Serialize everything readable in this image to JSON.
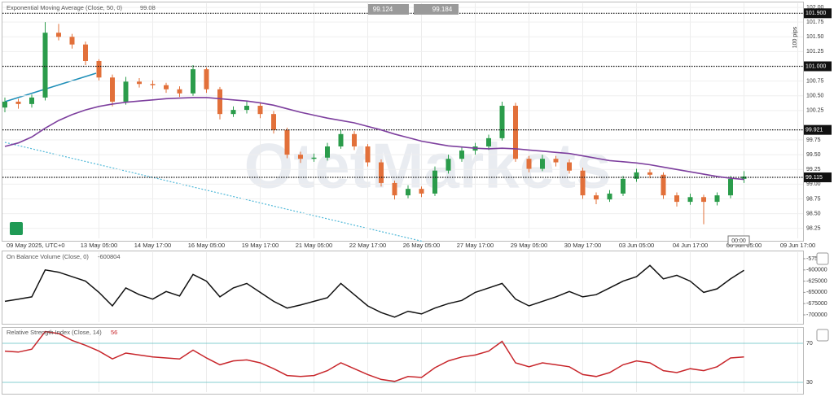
{
  "quotes": [
    "99.124",
    "99.184"
  ],
  "watermark": "OtetMarkets",
  "pips_label": "100 pips",
  "timer": "00:00",
  "chart_data": [
    {
      "type": "candlestick",
      "title": "Exponential Moving Average (Close, 50, 0)",
      "last_value": 99.08,
      "categories": [
        "09 May 2025, UTC+0",
        null,
        null,
        null,
        null,
        null,
        null,
        "13 May 05:00",
        null,
        null,
        null,
        "14 May 17:00",
        null,
        null,
        null,
        "16 May 05:00",
        null,
        null,
        null,
        "19 May 17:00",
        null,
        null,
        null,
        "21 May 05:00",
        null,
        null,
        null,
        "22 May 17:00",
        null,
        null,
        null,
        "26 May 05:00",
        null,
        null,
        null,
        "27 May 17:00",
        null,
        null,
        null,
        "29 May 05:00",
        null,
        null,
        null,
        "30 May 17:00",
        null,
        null,
        null,
        "03 Jun 05:00",
        null,
        null,
        null,
        "04 Jun 17:00",
        null,
        null,
        null,
        "06 Jun 05:00",
        null,
        null,
        null,
        "09 Jun 17:00"
      ],
      "open": [
        100.3,
        100.4,
        100.36,
        100.47,
        101.57,
        101.5,
        101.37,
        101.09,
        100.81,
        100.4,
        100.74,
        100.7,
        100.68,
        100.61,
        100.54,
        100.95,
        100.61,
        100.19,
        100.26,
        100.33,
        100.19,
        99.92,
        99.5,
        99.43,
        99.45,
        99.64,
        99.85,
        99.64,
        99.37,
        99.02,
        98.81,
        98.92,
        98.84,
        99.23,
        99.43,
        99.57,
        99.64,
        99.78,
        100.33,
        99.43,
        99.26,
        99.43,
        99.37,
        99.23,
        98.81,
        98.74,
        98.84,
        99.09,
        99.2,
        99.16,
        98.81,
        98.7,
        98.78,
        98.7,
        98.81,
        99.09,
        null,
        null,
        null,
        null
      ],
      "high": [
        100.47,
        100.45,
        100.52,
        101.75,
        101.72,
        101.55,
        101.42,
        101.12,
        100.86,
        100.82,
        100.8,
        100.76,
        100.72,
        100.66,
        101.02,
        100.98,
        100.65,
        100.32,
        100.4,
        100.38,
        100.24,
        99.96,
        99.55,
        99.52,
        99.7,
        99.92,
        99.9,
        99.68,
        99.42,
        99.06,
        98.98,
        98.96,
        99.3,
        99.5,
        99.64,
        99.7,
        99.84,
        100.4,
        100.38,
        99.48,
        99.5,
        99.48,
        99.42,
        99.28,
        98.86,
        98.9,
        99.14,
        99.26,
        99.25,
        99.2,
        98.86,
        98.84,
        98.82,
        98.86,
        99.14,
        99.22,
        null,
        null,
        null,
        null
      ],
      "low": [
        100.22,
        100.28,
        100.3,
        100.42,
        101.44,
        101.3,
        101.02,
        100.76,
        100.32,
        100.35,
        100.64,
        100.62,
        100.55,
        100.48,
        100.5,
        100.55,
        100.1,
        100.14,
        100.2,
        100.12,
        99.86,
        99.44,
        99.36,
        99.38,
        99.4,
        99.6,
        99.58,
        99.3,
        98.96,
        98.74,
        98.76,
        98.78,
        98.8,
        99.18,
        99.38,
        99.5,
        99.58,
        99.74,
        99.38,
        99.2,
        99.22,
        99.3,
        99.18,
        98.75,
        98.66,
        98.7,
        98.8,
        99.04,
        99.1,
        98.75,
        98.62,
        98.65,
        98.32,
        98.64,
        98.76,
        99.02,
        null,
        null,
        null,
        null
      ],
      "close": [
        100.4,
        100.36,
        100.47,
        101.57,
        101.5,
        101.37,
        101.09,
        100.81,
        100.4,
        100.74,
        100.7,
        100.68,
        100.61,
        100.54,
        100.95,
        100.61,
        100.19,
        100.26,
        100.33,
        100.19,
        99.92,
        99.5,
        99.43,
        99.45,
        99.64,
        99.85,
        99.64,
        99.37,
        99.02,
        98.81,
        98.92,
        98.84,
        99.23,
        99.43,
        99.57,
        99.64,
        99.78,
        100.33,
        99.43,
        99.26,
        99.43,
        99.37,
        99.23,
        98.81,
        98.74,
        98.84,
        99.09,
        99.2,
        99.16,
        98.81,
        98.7,
        98.78,
        98.7,
        98.81,
        99.09,
        99.13,
        null,
        null,
        null,
        null
      ],
      "up_color": "#2b9c4b",
      "down_color": "#e2703a",
      "series": [
        {
          "name": "Exponential Moving Average (Close, 50, 0)",
          "color": "#7d3f9e",
          "values": [
            99.64,
            99.7,
            99.8,
            99.95,
            100.08,
            100.18,
            100.26,
            100.32,
            100.36,
            100.39,
            100.41,
            100.43,
            100.45,
            100.46,
            100.47,
            100.47,
            100.45,
            100.43,
            100.41,
            100.38,
            100.34,
            100.28,
            100.22,
            100.17,
            100.12,
            100.08,
            100.04,
            99.98,
            99.92,
            99.85,
            99.79,
            99.73,
            99.69,
            99.65,
            99.63,
            99.61,
            99.6,
            99.61,
            99.6,
            99.58,
            99.56,
            99.54,
            99.52,
            99.48,
            99.44,
            99.4,
            99.38,
            99.36,
            99.33,
            99.29,
            99.25,
            99.21,
            99.17,
            99.13,
            99.1,
            99.08,
            null,
            null,
            null,
            null
          ]
        }
      ],
      "levels": [
        {
          "value": 101.9,
          "label": "101.900"
        },
        {
          "value": 101.0,
          "label": "101.000"
        },
        {
          "value": 99.921,
          "label": "99.921"
        },
        {
          "value": 99.115,
          "label": "99.115"
        }
      ],
      "ylim": [
        98.08,
        102.07
      ],
      "yticks": [
        98.25,
        {
          "value": 98.5,
          "label": "98.50"
        },
        98.75,
        {
          "value": 99,
          "label": "99.00"
        },
        99.25,
        {
          "value": 99.5,
          "label": "99.50"
        },
        99.75,
        100.25,
        {
          "value": 100.5,
          "label": "100.50"
        },
        100.75,
        101.25,
        {
          "value": 101.5,
          "label": "101.50"
        },
        101.75,
        {
          "value": 102,
          "label": "102.00"
        }
      ],
      "grid": true
    },
    {
      "type": "line",
      "title": "On Balance Volume (Close, 0)",
      "last_value": -600804,
      "series": [
        {
          "name": "On Balance Volume (Close, 0)",
          "color": "#111111",
          "values": [
            -670000,
            -665000,
            -660000,
            -600000,
            -605000,
            -615000,
            -625000,
            -650000,
            -680000,
            -640000,
            -655000,
            -665000,
            -648000,
            -658000,
            -610000,
            -625000,
            -660000,
            -640000,
            -630000,
            -650000,
            -670000,
            -685000,
            -678000,
            -670000,
            -662000,
            -630000,
            -655000,
            -680000,
            -695000,
            -705000,
            -692000,
            -698000,
            -685000,
            -675000,
            -668000,
            -650000,
            -640000,
            -630000,
            -665000,
            -680000,
            -670000,
            -660000,
            -648000,
            -660000,
            -655000,
            -640000,
            -625000,
            -615000,
            -590000,
            -620000,
            -612000,
            -625000,
            -650000,
            -642000,
            -620000,
            -600804,
            null,
            null,
            null,
            null
          ]
        }
      ],
      "ylim": [
        -716300,
        -560500
      ],
      "yticks": [
        -575000,
        -600000,
        -625000,
        -650000,
        -675000,
        -700000
      ]
    },
    {
      "type": "line",
      "title": "Relative Strength Index (Close, 14)",
      "last_value": 56,
      "series": [
        {
          "name": "Relative Strength Index (Close, 14)",
          "color": "#c8262b",
          "values": [
            62,
            61,
            64,
            82,
            80,
            73,
            68,
            62,
            54,
            60,
            58,
            56,
            55,
            54,
            63,
            55,
            48,
            52,
            53,
            50,
            44,
            37,
            36,
            37,
            42,
            50,
            44,
            38,
            33,
            31,
            36,
            35,
            45,
            52,
            56,
            58,
            62,
            72,
            50,
            46,
            50,
            48,
            46,
            38,
            36,
            40,
            48,
            52,
            50,
            42,
            40,
            44,
            42,
            46,
            55,
            56,
            null,
            null,
            null,
            null
          ]
        }
      ],
      "ylim": [
        20,
        85
      ],
      "yticks": [
        30,
        70
      ],
      "level_color": "#5bbfc0"
    }
  ]
}
